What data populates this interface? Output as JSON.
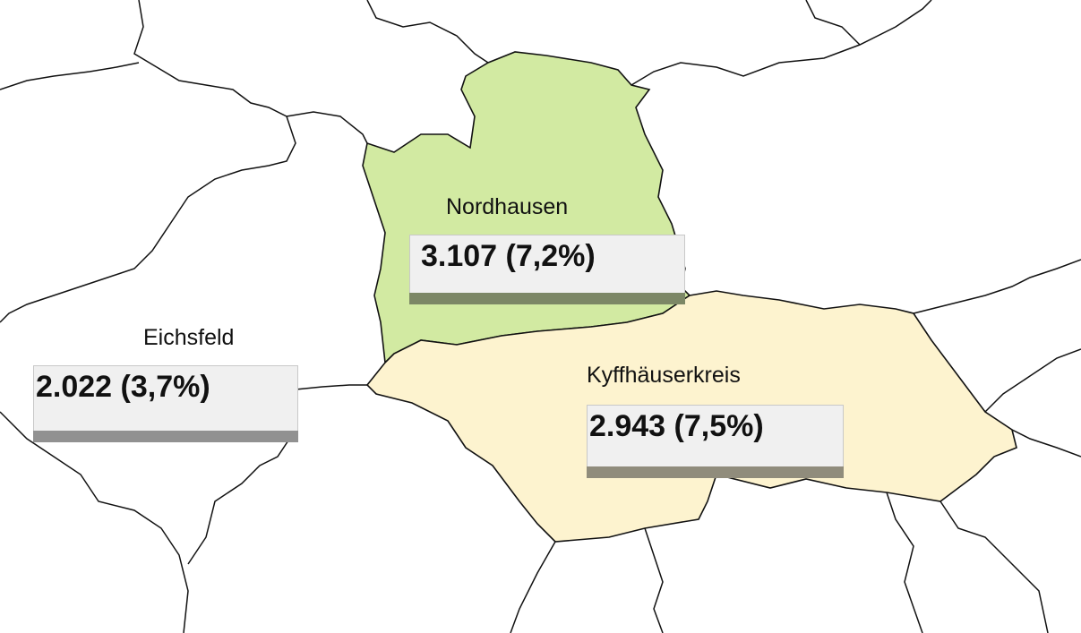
{
  "regions": [
    {
      "name": "Nordhausen",
      "value_label": "3.107 (7,2%)",
      "fill": "#d2eaa2",
      "shadow": "#7c8766"
    },
    {
      "name": "Eichsfeld",
      "value_label": "2.022 (3,7%)",
      "fill": "#ffffff",
      "shadow": "#919191"
    },
    {
      "name": "Kyffhäuserkreis",
      "value_label": "2.943 (7,5%)",
      "fill": "#fdf3cf",
      "shadow": "#908c7c"
    }
  ]
}
